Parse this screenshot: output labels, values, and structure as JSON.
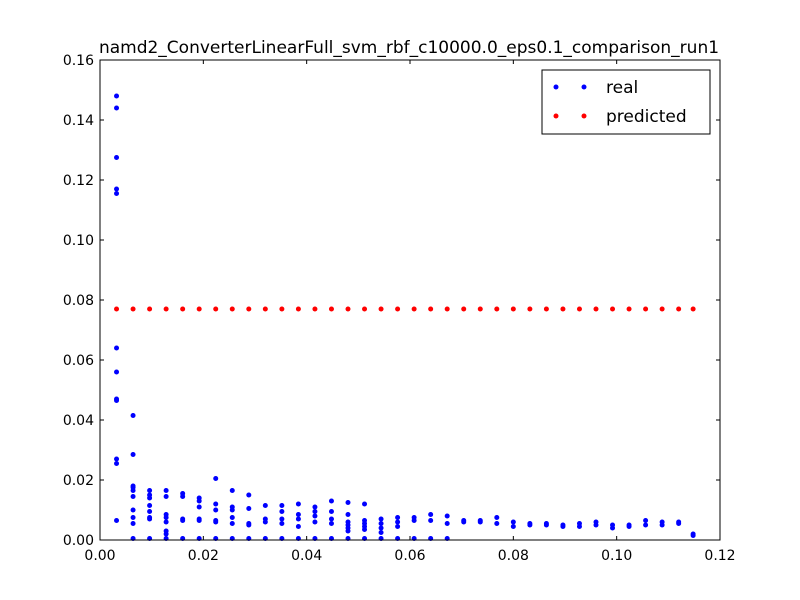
{
  "chart_data": {
    "type": "scatter",
    "title": "namd2_ConverterLinearFull_svm_rbf_c10000.0_eps0.1_comparison_run1",
    "xlabel": "",
    "ylabel": "",
    "xlim": [
      0,
      0.12
    ],
    "ylim": [
      0,
      0.16
    ],
    "x_ticks": [
      "0.00",
      "0.02",
      "0.04",
      "0.06",
      "0.08",
      "0.10",
      "0.12"
    ],
    "y_ticks": [
      "0.00",
      "0.02",
      "0.04",
      "0.06",
      "0.08",
      "0.10",
      "0.12",
      "0.14",
      "0.16"
    ],
    "grid": false,
    "legend_position": "top-right",
    "series": [
      {
        "name": "real",
        "color": "#0000ff",
        "points": [
          [
            0.0032,
            0.148
          ],
          [
            0.0032,
            0.144
          ],
          [
            0.0032,
            0.1275
          ],
          [
            0.0032,
            0.117
          ],
          [
            0.0032,
            0.1155
          ],
          [
            0.0032,
            0.064
          ],
          [
            0.0032,
            0.056
          ],
          [
            0.0032,
            0.047
          ],
          [
            0.0032,
            0.0465
          ],
          [
            0.0032,
            0.027
          ],
          [
            0.0032,
            0.0255
          ],
          [
            0.0032,
            0.0065
          ],
          [
            0.0064,
            0.0415
          ],
          [
            0.0064,
            0.0285
          ],
          [
            0.0064,
            0.018
          ],
          [
            0.0064,
            0.0175
          ],
          [
            0.0064,
            0.0165
          ],
          [
            0.0064,
            0.0145
          ],
          [
            0.0064,
            0.01
          ],
          [
            0.0064,
            0.0075
          ],
          [
            0.0064,
            0.0055
          ],
          [
            0.0064,
            0.0005
          ],
          [
            0.0096,
            0.0165
          ],
          [
            0.0096,
            0.015
          ],
          [
            0.0096,
            0.014
          ],
          [
            0.0096,
            0.0115
          ],
          [
            0.0096,
            0.0095
          ],
          [
            0.0096,
            0.0075
          ],
          [
            0.0096,
            0.007
          ],
          [
            0.0096,
            0.0005
          ],
          [
            0.0128,
            0.0165
          ],
          [
            0.0128,
            0.0145
          ],
          [
            0.0128,
            0.0085
          ],
          [
            0.0128,
            0.0075
          ],
          [
            0.0128,
            0.006
          ],
          [
            0.0128,
            0.003
          ],
          [
            0.0128,
            0.002
          ],
          [
            0.0128,
            0.0005
          ],
          [
            0.016,
            0.0155
          ],
          [
            0.016,
            0.0145
          ],
          [
            0.016,
            0.007
          ],
          [
            0.016,
            0.0065
          ],
          [
            0.016,
            0.0005
          ],
          [
            0.0192,
            0.014
          ],
          [
            0.0192,
            0.013
          ],
          [
            0.0192,
            0.011
          ],
          [
            0.0192,
            0.007
          ],
          [
            0.0192,
            0.0065
          ],
          [
            0.0192,
            0.0005
          ],
          [
            0.0224,
            0.0205
          ],
          [
            0.0224,
            0.012
          ],
          [
            0.0224,
            0.01
          ],
          [
            0.0224,
            0.0065
          ],
          [
            0.0224,
            0.006
          ],
          [
            0.0224,
            0.0005
          ],
          [
            0.0256,
            0.0165
          ],
          [
            0.0256,
            0.011
          ],
          [
            0.0256,
            0.01
          ],
          [
            0.0256,
            0.0075
          ],
          [
            0.0256,
            0.0055
          ],
          [
            0.0256,
            0.0005
          ],
          [
            0.0288,
            0.015
          ],
          [
            0.0288,
            0.0105
          ],
          [
            0.0288,
            0.0055
          ],
          [
            0.0288,
            0.005
          ],
          [
            0.0288,
            0.0005
          ],
          [
            0.032,
            0.0115
          ],
          [
            0.032,
            0.007
          ],
          [
            0.032,
            0.006
          ],
          [
            0.032,
            0.0005
          ],
          [
            0.0352,
            0.0115
          ],
          [
            0.0352,
            0.0095
          ],
          [
            0.0352,
            0.007
          ],
          [
            0.0352,
            0.0055
          ],
          [
            0.0352,
            0.0005
          ],
          [
            0.0384,
            0.012
          ],
          [
            0.0384,
            0.0085
          ],
          [
            0.0384,
            0.007
          ],
          [
            0.0384,
            0.0045
          ],
          [
            0.0384,
            0.0005
          ],
          [
            0.0416,
            0.011
          ],
          [
            0.0416,
            0.0095
          ],
          [
            0.0416,
            0.008
          ],
          [
            0.0416,
            0.006
          ],
          [
            0.0416,
            0.0005
          ],
          [
            0.0448,
            0.013
          ],
          [
            0.0448,
            0.0095
          ],
          [
            0.0448,
            0.007
          ],
          [
            0.0448,
            0.0055
          ],
          [
            0.0448,
            0.0005
          ],
          [
            0.048,
            0.0125
          ],
          [
            0.048,
            0.0085
          ],
          [
            0.048,
            0.006
          ],
          [
            0.048,
            0.005
          ],
          [
            0.048,
            0.004
          ],
          [
            0.048,
            0.003
          ],
          [
            0.048,
            0.0005
          ],
          [
            0.0512,
            0.012
          ],
          [
            0.0512,
            0.0065
          ],
          [
            0.0512,
            0.0055
          ],
          [
            0.0512,
            0.0045
          ],
          [
            0.0512,
            0.0035
          ],
          [
            0.0512,
            0.0005
          ],
          [
            0.0544,
            0.007
          ],
          [
            0.0544,
            0.0055
          ],
          [
            0.0544,
            0.004
          ],
          [
            0.0544,
            0.0025
          ],
          [
            0.0544,
            0.0005
          ],
          [
            0.0576,
            0.0075
          ],
          [
            0.0576,
            0.006
          ],
          [
            0.0576,
            0.0045
          ],
          [
            0.0576,
            0.0005
          ],
          [
            0.0608,
            0.0075
          ],
          [
            0.0608,
            0.0065
          ],
          [
            0.0608,
            0.0005
          ],
          [
            0.064,
            0.0085
          ],
          [
            0.064,
            0.0065
          ],
          [
            0.064,
            0.0005
          ],
          [
            0.0672,
            0.008
          ],
          [
            0.0672,
            0.0055
          ],
          [
            0.0672,
            0.0005
          ],
          [
            0.0704,
            0.0065
          ],
          [
            0.0704,
            0.006
          ],
          [
            0.0736,
            0.0065
          ],
          [
            0.0736,
            0.006
          ],
          [
            0.0768,
            0.0075
          ],
          [
            0.0768,
            0.0055
          ],
          [
            0.08,
            0.006
          ],
          [
            0.08,
            0.0045
          ],
          [
            0.0832,
            0.0055
          ],
          [
            0.0832,
            0.005
          ],
          [
            0.0864,
            0.0055
          ],
          [
            0.0864,
            0.005
          ],
          [
            0.0896,
            0.005
          ],
          [
            0.0896,
            0.0045
          ],
          [
            0.0928,
            0.0055
          ],
          [
            0.0928,
            0.0045
          ],
          [
            0.096,
            0.006
          ],
          [
            0.096,
            0.005
          ],
          [
            0.0992,
            0.005
          ],
          [
            0.0992,
            0.004
          ],
          [
            0.1024,
            0.005
          ],
          [
            0.1024,
            0.0045
          ],
          [
            0.1056,
            0.0065
          ],
          [
            0.1056,
            0.005
          ],
          [
            0.1088,
            0.006
          ],
          [
            0.1088,
            0.005
          ],
          [
            0.112,
            0.006
          ],
          [
            0.112,
            0.0055
          ],
          [
            0.1148,
            0.002
          ],
          [
            0.1148,
            0.0015
          ]
        ]
      },
      {
        "name": "predicted",
        "color": "#ff0000",
        "points": [
          [
            0.0032,
            0.077
          ],
          [
            0.0064,
            0.077
          ],
          [
            0.0096,
            0.077
          ],
          [
            0.0128,
            0.077
          ],
          [
            0.016,
            0.077
          ],
          [
            0.0192,
            0.077
          ],
          [
            0.0224,
            0.077
          ],
          [
            0.0256,
            0.077
          ],
          [
            0.0288,
            0.077
          ],
          [
            0.032,
            0.077
          ],
          [
            0.0352,
            0.077
          ],
          [
            0.0384,
            0.077
          ],
          [
            0.0416,
            0.077
          ],
          [
            0.0448,
            0.077
          ],
          [
            0.048,
            0.077
          ],
          [
            0.0512,
            0.077
          ],
          [
            0.0544,
            0.077
          ],
          [
            0.0576,
            0.077
          ],
          [
            0.0608,
            0.077
          ],
          [
            0.064,
            0.077
          ],
          [
            0.0672,
            0.077
          ],
          [
            0.0704,
            0.077
          ],
          [
            0.0736,
            0.077
          ],
          [
            0.0768,
            0.077
          ],
          [
            0.08,
            0.077
          ],
          [
            0.0832,
            0.077
          ],
          [
            0.0864,
            0.077
          ],
          [
            0.0896,
            0.077
          ],
          [
            0.0928,
            0.077
          ],
          [
            0.096,
            0.077
          ],
          [
            0.0992,
            0.077
          ],
          [
            0.1024,
            0.077
          ],
          [
            0.1056,
            0.077
          ],
          [
            0.1088,
            0.077
          ],
          [
            0.112,
            0.077
          ],
          [
            0.1148,
            0.077
          ]
        ]
      }
    ]
  }
}
